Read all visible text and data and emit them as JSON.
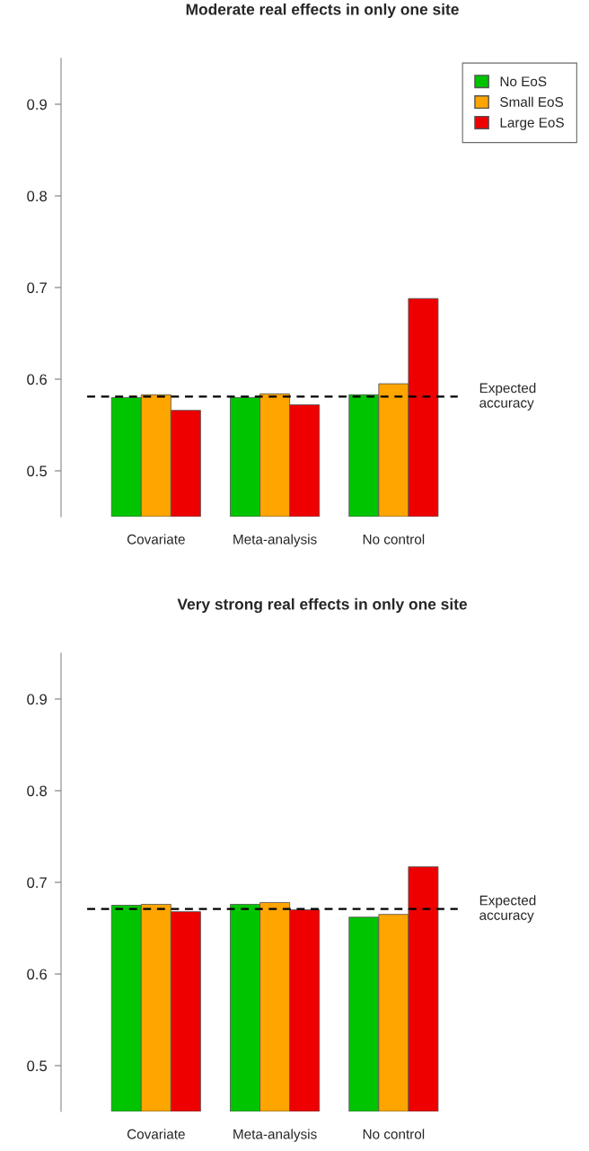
{
  "chart_data": [
    {
      "type": "bar",
      "title": "Moderate real effects in only one site",
      "categories": [
        "Covariate",
        "Meta-analysis",
        "No control"
      ],
      "series": [
        {
          "name": "No EoS",
          "color": "#00c400",
          "values": [
            0.58,
            0.58,
            0.583
          ]
        },
        {
          "name": "Small EoS",
          "color": "#ffa500",
          "values": [
            0.583,
            0.584,
            0.595
          ]
        },
        {
          "name": "Large EoS",
          "color": "#ee0000",
          "values": [
            0.566,
            0.572,
            0.688
          ]
        }
      ],
      "ylim": [
        0.45,
        0.95
      ],
      "yticks": [
        0.5,
        0.6,
        0.7,
        0.8,
        0.9
      ],
      "ref_lines": [
        {
          "axis": "y",
          "value": 0.581,
          "label": "Expected\naccuracy",
          "color": "#000000",
          "line_style": "dashed"
        }
      ],
      "legend": "top right",
      "grid": false
    },
    {
      "type": "bar",
      "title": "Very strong real effects in only one site",
      "categories": [
        "Covariate",
        "Meta-analysis",
        "No control"
      ],
      "series": [
        {
          "color": "#00c400",
          "values": [
            0.675,
            0.676,
            0.662
          ]
        },
        {
          "color": "#ffa500",
          "values": [
            0.676,
            0.678,
            0.665
          ]
        },
        {
          "color": "#ee0000",
          "values": [
            0.668,
            0.67,
            0.717
          ]
        }
      ],
      "ylim": [
        0.45,
        0.95
      ],
      "yticks": [
        0.5,
        0.6,
        0.7,
        0.8,
        0.9
      ],
      "ref_lines": [
        {
          "axis": "y",
          "value": 0.671,
          "label": "Expected\naccuracy",
          "color": "#000000",
          "line_style": "dashed"
        }
      ],
      "legend": false,
      "grid": false
    }
  ]
}
